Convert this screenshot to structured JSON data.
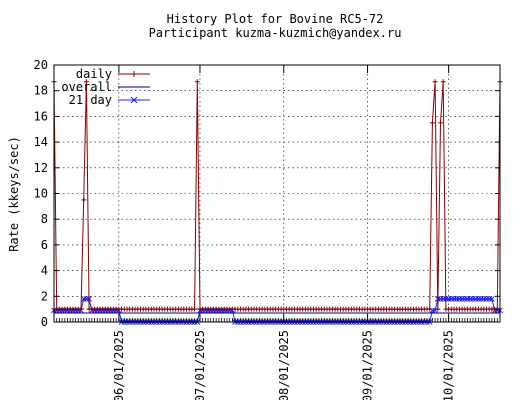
{
  "chart_data": {
    "type": "line",
    "title": "History Plot for Bovine RC5-72",
    "subtitle": "Participant kuzma-kuzmich@yandex.ru",
    "ylabel": "Rate (kkeys/sec)",
    "xlabel": "",
    "ylim": [
      0,
      20
    ],
    "yticks": [
      0,
      2,
      4,
      6,
      8,
      10,
      12,
      14,
      16,
      18,
      20
    ],
    "xlim": [
      "2025-05-08",
      "2025-10-20"
    ],
    "xtick_labels": [
      "06/01/2025",
      "07/01/2025",
      "08/01/2025",
      "09/01/2025",
      "10/01/2025"
    ],
    "xticks": [
      "2025-06-01",
      "2025-07-01",
      "2025-08-01",
      "2025-09-01",
      "2025-10-01"
    ],
    "grid": true,
    "legend_position": "top-left",
    "series": [
      {
        "name": "daily",
        "color": "#8b0000",
        "marker": "plus",
        "points": [
          [
            "2025-05-08",
            18.7
          ],
          [
            "2025-05-09",
            1.0
          ],
          [
            "2025-05-18",
            1.0
          ],
          [
            "2025-05-19",
            9.5
          ],
          [
            "2025-05-20",
            18.7
          ],
          [
            "2025-05-21",
            1.0
          ],
          [
            "2025-06-29",
            1.0
          ],
          [
            "2025-06-30",
            18.7
          ],
          [
            "2025-07-01",
            1.0
          ],
          [
            "2025-09-24",
            1.0
          ],
          [
            "2025-09-25",
            15.5
          ],
          [
            "2025-09-26",
            18.7
          ],
          [
            "2025-09-27",
            1.0
          ],
          [
            "2025-09-28",
            15.5
          ],
          [
            "2025-09-29",
            18.7
          ],
          [
            "2025-09-30",
            1.0
          ],
          [
            "2025-10-19",
            1.0
          ],
          [
            "2025-10-20",
            18.7
          ]
        ]
      },
      {
        "name": "overall",
        "color": "#00008b",
        "marker": "none",
        "points": [
          [
            "2025-05-08",
            0.7
          ],
          [
            "2025-10-20",
            0.7
          ]
        ]
      },
      {
        "name": "21 day",
        "color": "#2222ee",
        "marker": "x",
        "segments": [
          {
            "from": "2025-05-08",
            "to": "2025-05-18",
            "value": 0.9
          },
          {
            "from": "2025-05-19",
            "to": "2025-05-21",
            "value": 1.8
          },
          {
            "from": "2025-05-22",
            "to": "2025-06-01",
            "value": 0.9
          },
          {
            "from": "2025-06-02",
            "to": "2025-06-30",
            "value": 0.0
          },
          {
            "from": "2025-07-01",
            "to": "2025-07-13",
            "value": 0.9
          },
          {
            "from": "2025-07-14",
            "to": "2025-09-24",
            "value": 0.0
          },
          {
            "from": "2025-09-25",
            "to": "2025-09-26",
            "value": 0.9
          },
          {
            "from": "2025-09-27",
            "to": "2025-10-17",
            "value": 1.8
          },
          {
            "from": "2025-10-18",
            "to": "2025-10-20",
            "value": 0.9
          }
        ]
      }
    ]
  }
}
